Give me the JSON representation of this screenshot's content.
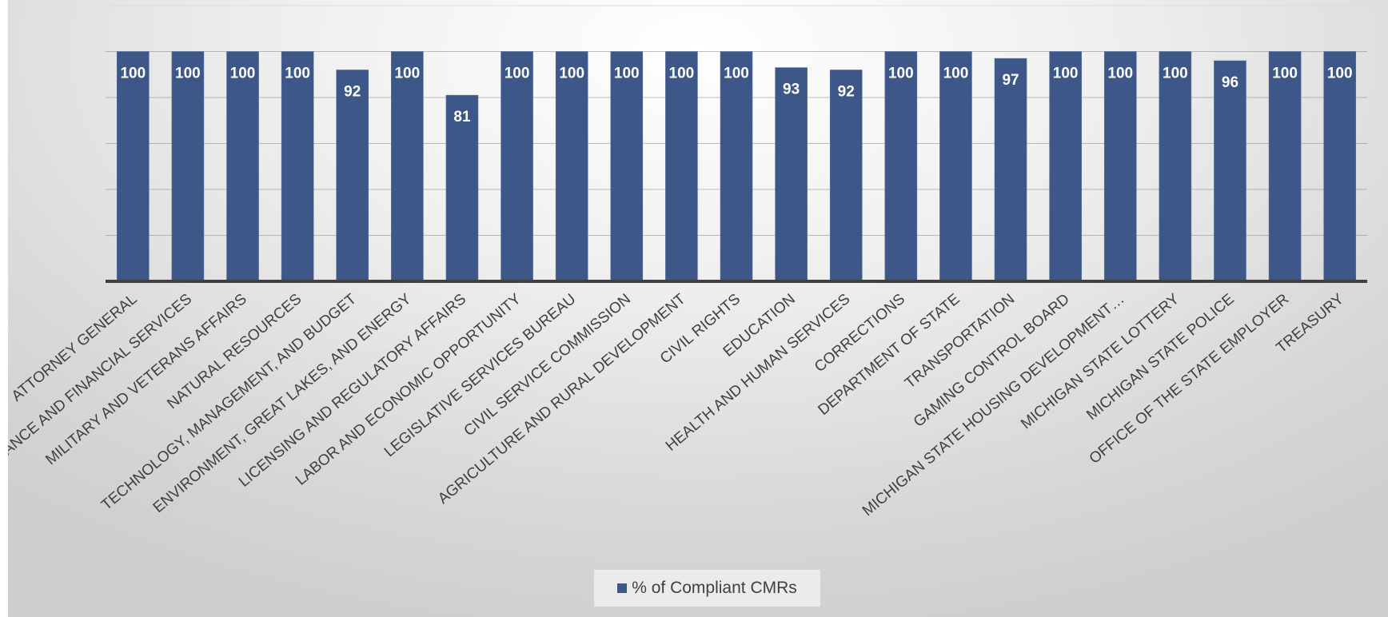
{
  "chart_data": {
    "type": "bar",
    "categories": [
      "ATTORNEY GENERAL",
      "INSURANCE AND FINANCIAL SERVICES",
      "MILITARY AND VETERANS AFFAIRS",
      "NATURAL RESOURCES",
      "TECHNOLOGY, MANAGEMENT, AND BUDGET",
      "ENVIRONMENT, GREAT LAKES, AND ENERGY",
      "LICENSING AND REGULATORY AFFAIRS",
      "LABOR AND ECONOMIC OPPORTUNITY",
      "LEGISLATIVE SERVICES BUREAU",
      "CIVIL SERVICE COMMISSION",
      "AGRICULTURE AND RURAL DEVELOPMENT",
      "CIVIL RIGHTS",
      "EDUCATION",
      "HEALTH AND HUMAN SERVICES",
      "CORRECTIONS",
      "DEPARTMENT OF STATE",
      "TRANSPORTATION",
      "GAMING CONTROL BOARD",
      "MICHIGAN STATE HOUSING DEVELOPMENT…",
      "MICHIGAN STATE LOTTERY",
      "MICHIGAN STATE POLICE",
      "OFFICE OF THE STATE EMPLOYER",
      "TREASURY"
    ],
    "series": [
      {
        "name": "% of Compliant CMRs",
        "values": [
          100,
          100,
          100,
          100,
          92,
          100,
          81,
          100,
          100,
          100,
          100,
          100,
          93,
          92,
          100,
          100,
          97,
          100,
          100,
          100,
          96,
          100,
          100
        ]
      }
    ],
    "data_labels": true,
    "ylim": [
      0,
      120
    ],
    "grid": true,
    "legend_position": "bottom",
    "bar_color": "#3e5789"
  }
}
